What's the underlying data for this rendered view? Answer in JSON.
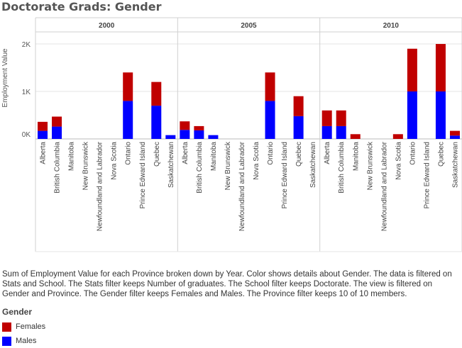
{
  "title": "Doctorate Grads: Gender",
  "caption": "Sum of Employment Value for each Province broken down by Year.  Color shows details about Gender. The data is filtered on Stats and School. The Stats filter keeps Number of graduates. The School filter keeps Doctorate. The view is filtered on Gender and Province. The Gender filter keeps Females and Males. The Province filter keeps 10 of 10 members.",
  "legend": {
    "title": "Gender",
    "items": [
      {
        "label": "Females",
        "color": "#c00000"
      },
      {
        "label": "Males",
        "color": "#0000ff"
      }
    ]
  },
  "chart_data": {
    "type": "bar",
    "stacked": true,
    "ylabel": "Employment Value",
    "ylim": [
      0,
      2150
    ],
    "yticks": [
      {
        "value": 0,
        "label": "0K"
      },
      {
        "value": 1000,
        "label": "1K"
      },
      {
        "value": 2000,
        "label": "2K"
      }
    ],
    "grid": true,
    "legend_position": "bottom-left",
    "panels": [
      "2000",
      "2005",
      "2010"
    ],
    "categories": [
      "Alberta",
      "British Columbia",
      "Manitoba",
      "New Brunswick",
      "Newfoundland and Labrador",
      "Nova Scotia",
      "Ontario",
      "Prince Edward Island",
      "Quebec",
      "Saskatchewan"
    ],
    "series": [
      {
        "name": "Males",
        "color": "#0000ff",
        "values": [
          [
            170,
            260,
            0,
            0,
            0,
            0,
            800,
            0,
            700,
            80
          ],
          [
            190,
            180,
            80,
            0,
            0,
            0,
            800,
            0,
            480,
            0
          ],
          [
            270,
            270,
            0,
            0,
            0,
            0,
            1000,
            0,
            1000,
            70
          ]
        ]
      },
      {
        "name": "Females",
        "color": "#c00000",
        "values": [
          [
            190,
            210,
            0,
            0,
            0,
            0,
            600,
            0,
            500,
            0
          ],
          [
            180,
            90,
            0,
            0,
            0,
            0,
            600,
            0,
            420,
            0
          ],
          [
            330,
            330,
            100,
            0,
            0,
            100,
            900,
            0,
            1000,
            100
          ]
        ]
      }
    ]
  }
}
